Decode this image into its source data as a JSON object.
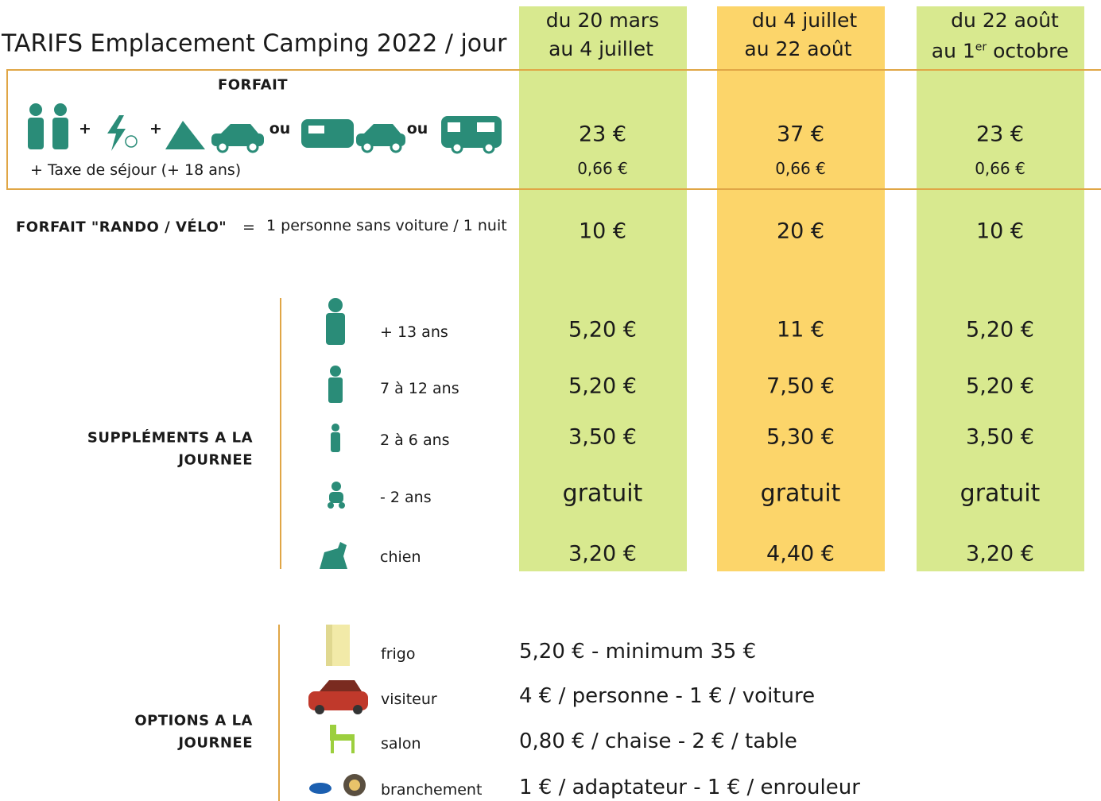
{
  "title": "TARIFS Emplacement Camping 2022 / jour",
  "periods": [
    {
      "from": "du 20 mars",
      "to": "au 4 juillet"
    },
    {
      "from": "du  4 juillet",
      "to": "au 22 août"
    },
    {
      "from": "du 22 août",
      "to": "au 1",
      "to_sup": "er",
      "to_rest": " octobre"
    }
  ],
  "forfait": {
    "label": "FORFAIT",
    "connectors": [
      "+",
      "+",
      "ou",
      "ou"
    ],
    "tax_label": "+ Taxe de séjour (+ 18 ans)",
    "prices": [
      "23 €",
      "37 €",
      "23 €"
    ],
    "tax": [
      "0,66 €",
      "0,66 €",
      "0,66 €"
    ]
  },
  "rando": {
    "label": "FORFAIT \"RANDO / VÉLO\"",
    "equals": "=",
    "description": "1 personne sans voiture / 1 nuit",
    "prices": [
      "10 €",
      "20 €",
      "10 €"
    ]
  },
  "supplements": {
    "label": [
      "SUPPLÉMENTS A LA",
      "JOURNEE"
    ],
    "rows": [
      {
        "label": "+ 13 ans",
        "prices": [
          "5,20 €",
          "11 €",
          "5,20 €"
        ]
      },
      {
        "label": "7 à 12 ans",
        "prices": [
          "5,20 €",
          "7,50 €",
          "5,20 €"
        ]
      },
      {
        "label": "2 à 6 ans",
        "prices": [
          "3,50 €",
          "5,30 €",
          "3,50 €"
        ]
      },
      {
        "label": "- 2 ans",
        "prices": [
          "gratuit",
          "gratuit",
          "gratuit"
        ]
      },
      {
        "label": "chien",
        "prices": [
          "3,20 €",
          "4,40 €",
          "3,20 €"
        ]
      }
    ]
  },
  "options": {
    "label": [
      "OPTIONS A LA",
      "JOURNEE"
    ],
    "rows": [
      {
        "label": "frigo",
        "price": "5,20 € - minimum 35 €"
      },
      {
        "label": "visiteur",
        "price": "4 € / personne - 1 € / voiture"
      },
      {
        "label": "salon",
        "price": "0,80 € / chaise - 2 € / table"
      },
      {
        "label": "branchement",
        "price": "1 € / adaptateur - 1 € / enrouleur"
      }
    ]
  }
}
